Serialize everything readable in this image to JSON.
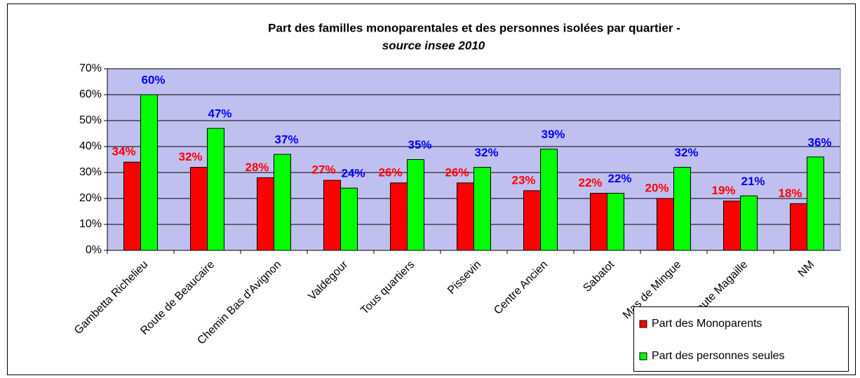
{
  "chart_data": {
    "type": "bar",
    "title": "Part des familles monoparentales et des personnes isolées par quartier -",
    "subtitle": "source insee 2010",
    "categories": [
      "Gambetta Richelieu",
      "Route de Beaucaire",
      "Chemin Bas d'Avignon",
      "Valdegour",
      "Tous quartiers",
      "Pissevin",
      "Centre Ancien",
      "Sabatot",
      "Mas de Mingue",
      "Haute Magaille",
      "NM"
    ],
    "series": [
      {
        "name": "Part des Monoparents",
        "color": "#ff0000",
        "label_color": "#ff0000",
        "values": [
          34,
          32,
          28,
          27,
          26,
          26,
          23,
          22,
          20,
          19,
          18
        ],
        "value_labels": [
          "34%",
          "32%",
          "28%",
          "27%",
          "26%",
          "26%",
          "23%",
          "22%",
          "20%",
          "19%",
          "18%"
        ]
      },
      {
        "name": "Part des personnes seules",
        "color": "#00ff00",
        "label_color": "#0000ff",
        "values": [
          60,
          47,
          37,
          24,
          35,
          32,
          39,
          22,
          32,
          21,
          36
        ],
        "value_labels": [
          "60%",
          "47%",
          "37%",
          "24%",
          "35%",
          "32%",
          "39%",
          "22%",
          "32%",
          "21%",
          "36%"
        ]
      }
    ],
    "ylim": [
      0,
      70
    ],
    "yticks": [
      {
        "value": 0,
        "label": "0%"
      },
      {
        "value": 10,
        "label": "10%"
      },
      {
        "value": 20,
        "label": "20%"
      },
      {
        "value": 30,
        "label": "30%"
      },
      {
        "value": 40,
        "label": "40%"
      },
      {
        "value": 50,
        "label": "50%"
      },
      {
        "value": 60,
        "label": "60%"
      },
      {
        "value": 70,
        "label": "70%"
      }
    ],
    "grid": true,
    "legend": "bottom-right",
    "plot_background": "#c0c0f0"
  }
}
